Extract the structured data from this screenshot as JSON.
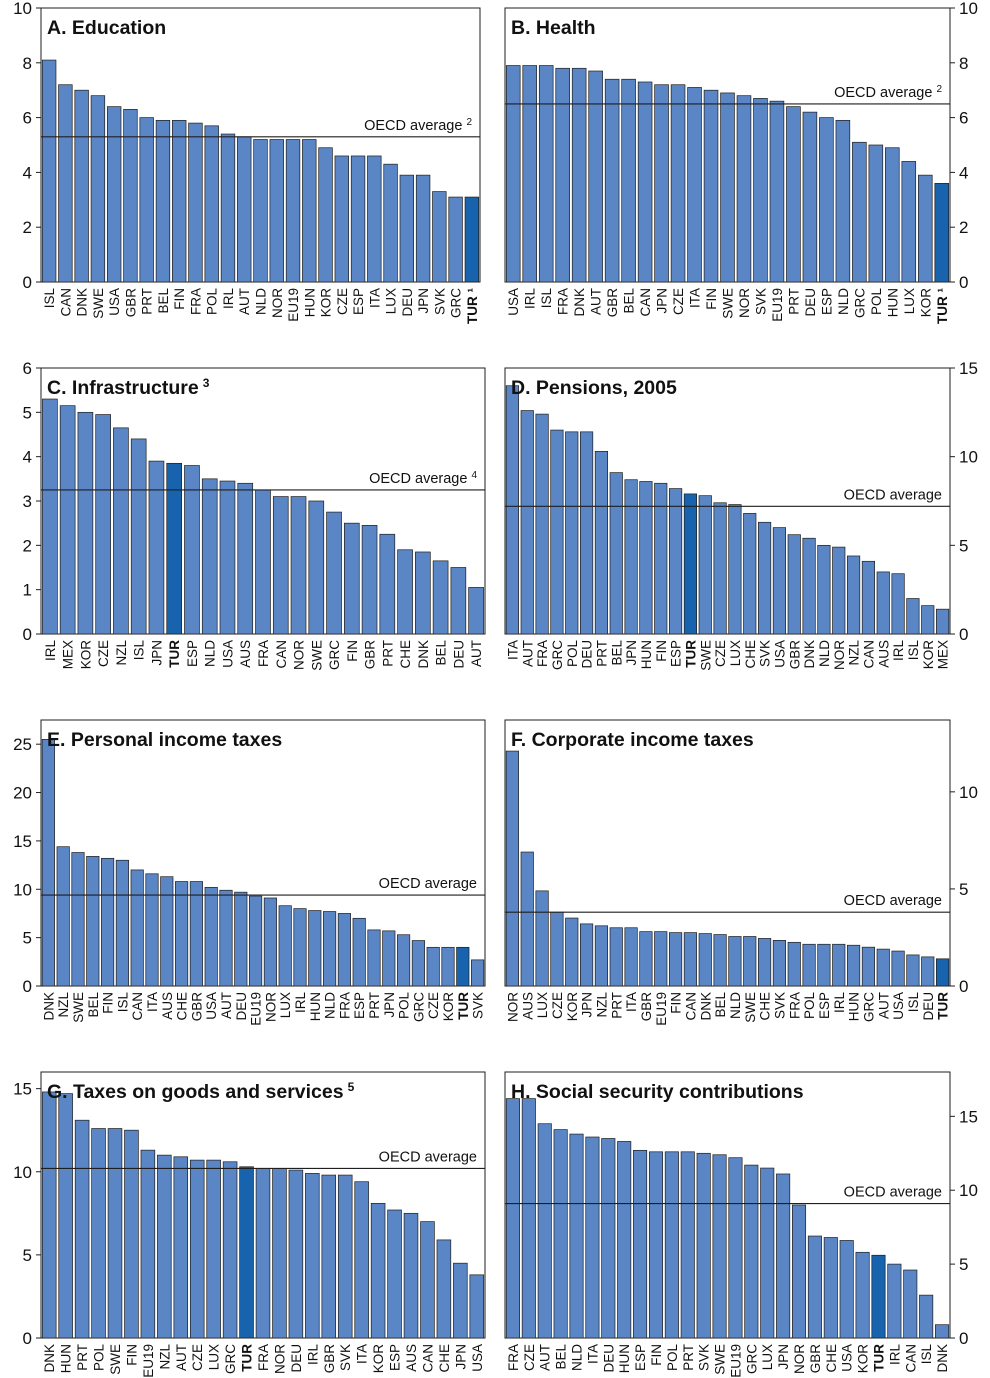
{
  "colors": {
    "bar": "#5b86c5",
    "highlight": "#1763ad",
    "outline": "#1f1f1f"
  },
  "chart_data": [
    {
      "type": "bar",
      "title": "A. Education",
      "title_sup": "",
      "categories": [
        "ISL",
        "CAN",
        "DNK",
        "SWE",
        "USA",
        "GBR",
        "PRT",
        "BEL",
        "FIN",
        "FRA",
        "POL",
        "IRL",
        "AUT",
        "NLD",
        "NOR",
        "EU19",
        "HUN",
        "KOR",
        "CZE",
        "ESP",
        "ITA",
        "LUX",
        "DEU",
        "JPN",
        "SVK",
        "GRC",
        "TUR"
      ],
      "highlight_labels": [
        "TUR ¹"
      ],
      "values": [
        8.1,
        7.2,
        7.0,
        6.8,
        6.4,
        6.3,
        6.0,
        5.9,
        5.9,
        5.8,
        5.7,
        5.4,
        5.3,
        5.2,
        5.2,
        5.2,
        5.2,
        4.9,
        4.6,
        4.6,
        4.6,
        4.3,
        3.9,
        3.9,
        3.3,
        3.1,
        3.1
      ],
      "highlight": [
        "TUR"
      ],
      "ylim": [
        0,
        10
      ],
      "yticks": [
        0,
        2,
        4,
        6,
        8,
        10
      ],
      "reference_line": {
        "label": "OECD average",
        "label_sup": "2",
        "value": 5.3
      }
    },
    {
      "type": "bar",
      "title": "B. Health",
      "title_sup": "",
      "categories": [
        "USA",
        "IRL",
        "ISL",
        "FRA",
        "DNK",
        "AUT",
        "GBR",
        "BEL",
        "CAN",
        "JPN",
        "CZE",
        "ITA",
        "FIN",
        "SWE",
        "NOR",
        "SVK",
        "EU19",
        "PRT",
        "DEU",
        "ESP",
        "NLD",
        "GRC",
        "POL",
        "HUN",
        "LUX",
        "KOR",
        "TUR"
      ],
      "highlight_labels": [
        "TUR ¹"
      ],
      "values": [
        7.9,
        7.9,
        7.9,
        7.8,
        7.8,
        7.7,
        7.4,
        7.4,
        7.3,
        7.2,
        7.2,
        7.1,
        7.0,
        6.9,
        6.8,
        6.7,
        6.6,
        6.4,
        6.2,
        6.0,
        5.9,
        5.1,
        5.0,
        4.9,
        4.4,
        3.9,
        3.6
      ],
      "highlight": [
        "TUR"
      ],
      "ylim": [
        0,
        10
      ],
      "yticks": [
        0,
        2,
        4,
        6,
        8,
        10
      ],
      "reference_line": {
        "label": "OECD average",
        "label_sup": "2",
        "value": 6.5
      }
    },
    {
      "type": "bar",
      "title": "C. Infrastructure",
      "title_sup": "3",
      "categories": [
        "IRL",
        "MEX",
        "KOR",
        "CZE",
        "NZL",
        "ISL",
        "JPN",
        "TUR",
        "ESP",
        "NLD",
        "USA",
        "AUS",
        "FRA",
        "CAN",
        "NOR",
        "SWE",
        "GRC",
        "FIN",
        "GBR",
        "PRT",
        "CHE",
        "DNK",
        "BEL",
        "DEU",
        "AUT"
      ],
      "highlight_labels": [],
      "values": [
        5.3,
        5.15,
        5.0,
        4.95,
        4.65,
        4.4,
        3.9,
        3.85,
        3.8,
        3.5,
        3.45,
        3.4,
        3.25,
        3.1,
        3.1,
        3.0,
        2.75,
        2.5,
        2.45,
        2.25,
        1.9,
        1.85,
        1.65,
        1.5,
        1.05
      ],
      "highlight": [
        "TUR"
      ],
      "ylim": [
        0,
        6
      ],
      "yticks": [
        0,
        1,
        2,
        3,
        4,
        5,
        6
      ],
      "reference_line": {
        "label": "OECD average",
        "label_sup": "4",
        "value": 3.25
      }
    },
    {
      "type": "bar",
      "title": "D. Pensions, 2005",
      "title_sup": "",
      "categories": [
        "ITA",
        "AUT",
        "FRA",
        "GRC",
        "POL",
        "DEU",
        "PRT",
        "BEL",
        "JPN",
        "HUN",
        "FIN",
        "ESP",
        "TUR",
        "SWE",
        "CZE",
        "LUX",
        "CHE",
        "SVK",
        "USA",
        "GBR",
        "DNK",
        "NLD",
        "NOR",
        "NZL",
        "CAN",
        "AUS",
        "IRL",
        "ISL",
        "KOR",
        "MEX"
      ],
      "highlight_labels": [],
      "values": [
        14.0,
        12.6,
        12.4,
        11.5,
        11.4,
        11.4,
        10.3,
        9.1,
        8.7,
        8.6,
        8.5,
        8.2,
        7.9,
        7.8,
        7.4,
        7.3,
        6.8,
        6.3,
        6.0,
        5.6,
        5.4,
        5.0,
        4.9,
        4.4,
        4.1,
        3.5,
        3.4,
        2.0,
        1.6,
        1.4
      ],
      "highlight": [
        "TUR"
      ],
      "ylim": [
        0,
        15
      ],
      "yticks": [
        0,
        5,
        10,
        15
      ],
      "reference_line": {
        "label": "OECD average",
        "label_sup": "",
        "value": 7.2
      }
    },
    {
      "type": "bar",
      "title": "E. Personal income taxes",
      "title_sup": "",
      "categories": [
        "DNK",
        "NZL",
        "SWE",
        "BEL",
        "FIN",
        "ISL",
        "CAN",
        "ITA",
        "AUS",
        "CHE",
        "GBR",
        "USA",
        "AUT",
        "DEU",
        "EU19",
        "NOR",
        "LUX",
        "IRL",
        "HUN",
        "NLD",
        "FRA",
        "ESP",
        "PRT",
        "JPN",
        "POL",
        "GRC",
        "CZE",
        "KOR",
        "TUR",
        "SVK"
      ],
      "highlight_labels": [],
      "values": [
        25.5,
        14.4,
        13.8,
        13.4,
        13.2,
        13.0,
        12.0,
        11.6,
        11.3,
        10.8,
        10.8,
        10.2,
        9.9,
        9.7,
        9.3,
        9.1,
        8.3,
        8.0,
        7.8,
        7.7,
        7.5,
        7.0,
        5.8,
        5.7,
        5.3,
        4.7,
        4.0,
        4.0,
        4.0,
        2.7
      ],
      "highlight": [
        "TUR"
      ],
      "ylim": [
        0,
        27.5
      ],
      "yticks": [
        0,
        5,
        10,
        15,
        20,
        25
      ],
      "reference_line": {
        "label": "OECD average",
        "label_sup": "",
        "value": 9.4
      }
    },
    {
      "type": "bar",
      "title": "F. Corporate income taxes",
      "title_sup": "",
      "categories": [
        "NOR",
        "AUS",
        "LUX",
        "CZE",
        "KOR",
        "JPN",
        "NZL",
        "PRT",
        "ITA",
        "GBR",
        "EU19",
        "FIN",
        "CAN",
        "DNK",
        "BEL",
        "NLD",
        "SWE",
        "CHE",
        "SVK",
        "FRA",
        "POL",
        "ESP",
        "IRL",
        "HUN",
        "GRC",
        "AUT",
        "USA",
        "ISL",
        "DEU",
        "TUR"
      ],
      "highlight_labels": [],
      "values": [
        12.1,
        6.9,
        4.9,
        3.8,
        3.5,
        3.2,
        3.1,
        3.0,
        3.0,
        2.8,
        2.8,
        2.75,
        2.75,
        2.7,
        2.65,
        2.55,
        2.55,
        2.45,
        2.35,
        2.25,
        2.15,
        2.15,
        2.15,
        2.1,
        2.0,
        1.9,
        1.8,
        1.6,
        1.5,
        1.4
      ],
      "highlight": [
        "TUR"
      ],
      "ylim": [
        0,
        13.7
      ],
      "yticks": [
        0,
        5,
        10
      ],
      "reference_line": {
        "label": "OECD average",
        "label_sup": "",
        "value": 3.8
      }
    },
    {
      "type": "bar",
      "title": "G. Taxes on goods and services",
      "title_sup": "5",
      "categories": [
        "DNK",
        "HUN",
        "PRT",
        "POL",
        "SWE",
        "FIN",
        "EU19",
        "NZL",
        "AUT",
        "CZE",
        "LUX",
        "GRC",
        "TUR",
        "FRA",
        "NOR",
        "DEU",
        "IRL",
        "GBR",
        "SVK",
        "ITA",
        "KOR",
        "ESP",
        "AUS",
        "CAN",
        "CHE",
        "JPN",
        "USA"
      ],
      "highlight_labels": [],
      "values": [
        14.8,
        14.7,
        13.1,
        12.6,
        12.6,
        12.5,
        11.3,
        11.0,
        10.9,
        10.7,
        10.7,
        10.6,
        10.3,
        10.2,
        10.2,
        10.1,
        9.9,
        9.8,
        9.8,
        9.4,
        8.1,
        7.7,
        7.5,
        7.0,
        5.9,
        4.5,
        3.8
      ],
      "highlight": [
        "TUR"
      ],
      "ylim": [
        0,
        16
      ],
      "yticks": [
        0,
        5,
        10,
        15
      ],
      "reference_line": {
        "label": "OECD average",
        "label_sup": "",
        "value": 10.2
      }
    },
    {
      "type": "bar",
      "title": "H. Social security contributions",
      "title_sup": "",
      "categories": [
        "FRA",
        "CZE",
        "AUT",
        "BEL",
        "NLD",
        "ITA",
        "DEU",
        "HUN",
        "ESP",
        "FIN",
        "POL",
        "PRT",
        "SVK",
        "SWE",
        "EU19",
        "GRC",
        "LUX",
        "JPN",
        "NOR",
        "GBR",
        "CHE",
        "USA",
        "KOR",
        "TUR",
        "IRL",
        "CAN",
        "ISL",
        "DNK"
      ],
      "highlight_labels": [],
      "values": [
        16.2,
        16.2,
        14.5,
        14.1,
        13.8,
        13.6,
        13.5,
        13.3,
        12.7,
        12.6,
        12.6,
        12.6,
        12.5,
        12.4,
        12.2,
        11.7,
        11.5,
        11.1,
        9.0,
        6.9,
        6.8,
        6.6,
        5.8,
        5.6,
        5.0,
        4.6,
        2.9,
        0.9
      ],
      "highlight": [
        "TUR"
      ],
      "ylim": [
        0,
        18
      ],
      "yticks": [
        0,
        5,
        10,
        15
      ],
      "reference_line": {
        "label": "OECD average",
        "label_sup": "",
        "value": 9.1
      }
    }
  ]
}
